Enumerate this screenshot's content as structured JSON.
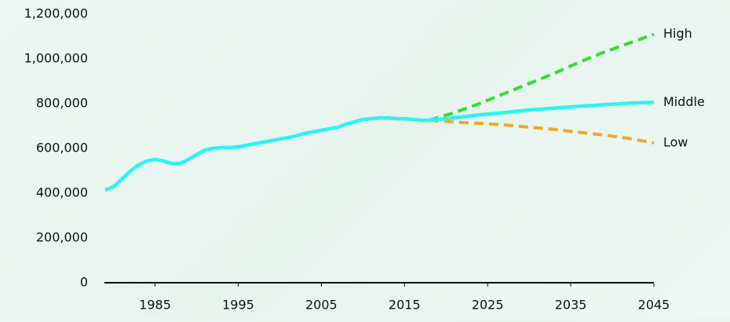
{
  "chart_data": {
    "type": "line",
    "xlim": [
      1979,
      2045
    ],
    "xticks": [
      1985,
      1995,
      2005,
      2015,
      2025,
      2035,
      2045
    ],
    "ylim": [
      0,
      1200000
    ],
    "yticks": [
      0,
      {
        "value": 200000,
        "label": "200,000"
      },
      {
        "value": 400000,
        "label": "400,000"
      },
      {
        "value": 600000,
        "label": "600,000"
      },
      {
        "value": 800000,
        "label": "800,000"
      },
      {
        "value": 1000000,
        "label": "1,000,000"
      },
      {
        "value": 1200000,
        "label": "1,200,000"
      }
    ],
    "grid": false,
    "series": [
      {
        "name": "Middle",
        "color": "#2ef3f3",
        "dashed": false,
        "x": [
          1979,
          1980,
          1981,
          1982,
          1983,
          1984,
          1985,
          1986,
          1987,
          1988,
          1989,
          1990,
          1991,
          1992,
          1993,
          1994,
          1995,
          1996,
          1997,
          1998,
          1999,
          2000,
          2001,
          2002,
          2003,
          2004,
          2005,
          2006,
          2007,
          2008,
          2009,
          2010,
          2011,
          2012,
          2013,
          2014,
          2015,
          2016,
          2017,
          2018,
          2021,
          2024,
          2027,
          2030,
          2033,
          2036,
          2039,
          2042,
          2045
        ],
        "values": [
          414000,
          428000,
          463000,
          498000,
          526000,
          544000,
          551000,
          544000,
          533000,
          533000,
          551000,
          572000,
          593000,
          600000,
          604000,
          604000,
          607000,
          614000,
          621000,
          628000,
          635000,
          642000,
          649000,
          656000,
          667000,
          674000,
          681000,
          688000,
          695000,
          709000,
          719000,
          730000,
          733000,
          737000,
          737000,
          733000,
          733000,
          730000,
          726000,
          726000,
          737000,
          750000,
          760000,
          772000,
          780000,
          788000,
          795000,
          802000,
          806000
        ]
      },
      {
        "name": "High",
        "color": "#33dd33",
        "dashed": true,
        "x": [
          2018,
          2021,
          2024,
          2027,
          2030,
          2033,
          2036,
          2039,
          2042,
          2045
        ],
        "values": [
          726000,
          760000,
          800000,
          845000,
          890000,
          935000,
          985000,
          1030000,
          1070000,
          1110000
        ]
      },
      {
        "name": "Low",
        "color": "#f5a623",
        "dashed": true,
        "x": [
          2018,
          2021,
          2024,
          2027,
          2030,
          2033,
          2036,
          2039,
          2042,
          2045
        ],
        "values": [
          726000,
          718000,
          712000,
          705000,
          695000,
          685000,
          672000,
          660000,
          645000,
          625000
        ]
      }
    ]
  }
}
